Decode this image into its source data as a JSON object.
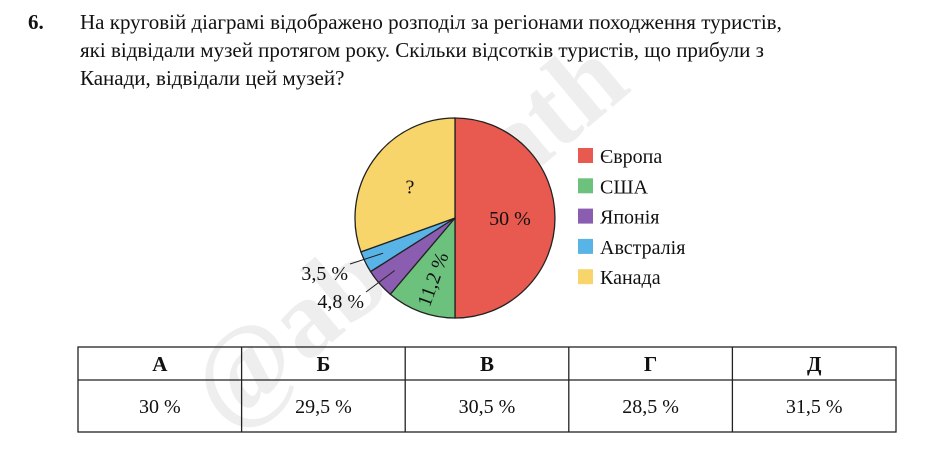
{
  "question": {
    "number": "6.",
    "lines": [
      "На круговій діаграмі відображено розподіл за регіонами походження туристів,",
      "які відвідали музей протягом року. Скільки відсотків туристів, що прибули з",
      "Канади, відвідали цей музей?"
    ]
  },
  "watermark": "@abitmath",
  "chart_data": {
    "type": "pie",
    "categories": [
      "Європа",
      "США",
      "Японія",
      "Австралія",
      "Канада"
    ],
    "values": [
      50,
      11.2,
      4.8,
      3.5,
      30.5
    ],
    "value_labels": [
      "50 %",
      "11,2 %",
      "4,8 %",
      "3,5 %",
      "?"
    ],
    "colors": [
      "#e8594f",
      "#6cc17d",
      "#8a5db0",
      "#58b3e6",
      "#f8d56b"
    ]
  },
  "table": {
    "header": [
      "А",
      "Б",
      "В",
      "Г",
      "Д"
    ],
    "rows": [
      [
        "30 %",
        "29,5 %",
        "30,5 %",
        "28,5 %",
        "31,5 %"
      ]
    ]
  }
}
